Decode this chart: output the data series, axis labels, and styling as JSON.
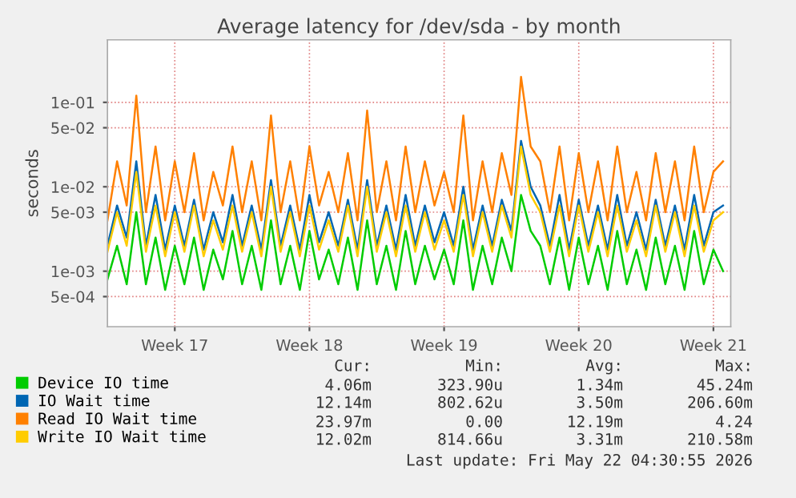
{
  "chart_data": {
    "type": "line",
    "title": "Average latency for /dev/sda - by month",
    "ylabel": "seconds",
    "log": "y",
    "grid": true,
    "legend": "bottom left",
    "marker": "none",
    "line_style": "solid",
    "categories": [
      null,
      null,
      null,
      null,
      null,
      null,
      null,
      "Week 17",
      null,
      null,
      null,
      null,
      null,
      null,
      null,
      null,
      null,
      null,
      null,
      null,
      null,
      "Week 18",
      null,
      null,
      null,
      null,
      null,
      null,
      null,
      null,
      null,
      null,
      null,
      null,
      null,
      "Week 19",
      null,
      null,
      null,
      null,
      null,
      null,
      null,
      null,
      null,
      null,
      null,
      null,
      null,
      "Week 20",
      null,
      null,
      null,
      null,
      null,
      null,
      null,
      null,
      null,
      null,
      null,
      null,
      null,
      "Week 21",
      null
    ],
    "ylim": [
      0.00022,
      0.55
    ],
    "yticks": [
      {
        "value": 0.0005,
        "label": "5e-04"
      },
      {
        "value": 0.001,
        "label": "1e-03"
      },
      {
        "value": 0.005,
        "label": "5e-03"
      },
      {
        "value": 0.01,
        "label": "1e-02"
      },
      {
        "value": 0.05,
        "label": "5e-02"
      },
      {
        "value": 0.1,
        "label": "1e-01"
      }
    ],
    "series": [
      {
        "name": "Device IO time",
        "color": "#00cc00",
        "values": [
          0.0008,
          0.002,
          0.0007,
          0.005,
          0.0007,
          0.0025,
          0.0006,
          0.002,
          0.0007,
          0.0025,
          0.0006,
          0.0018,
          0.0008,
          0.003,
          0.0007,
          0.002,
          0.0006,
          0.004,
          0.0007,
          0.002,
          0.0006,
          0.003,
          0.0008,
          0.0018,
          0.0007,
          0.0025,
          0.0006,
          0.004,
          0.0007,
          0.002,
          0.0006,
          0.003,
          0.0007,
          0.002,
          0.0008,
          0.0018,
          0.0007,
          0.004,
          0.0006,
          0.002,
          0.0007,
          0.0025,
          0.001,
          0.008,
          0.003,
          0.002,
          0.0007,
          0.0025,
          0.0006,
          0.0025,
          0.0007,
          0.002,
          0.0006,
          0.003,
          0.0007,
          0.0018,
          0.0006,
          0.0025,
          0.0007,
          0.002,
          0.0006,
          0.003,
          0.0007,
          0.0018,
          0.001
        ]
      },
      {
        "name": "IO Wait time",
        "color": "#0066b3",
        "values": [
          0.002,
          0.006,
          0.0025,
          0.02,
          0.002,
          0.008,
          0.0018,
          0.006,
          0.002,
          0.007,
          0.0018,
          0.005,
          0.0022,
          0.008,
          0.002,
          0.006,
          0.0018,
          0.012,
          0.002,
          0.006,
          0.0018,
          0.008,
          0.0022,
          0.005,
          0.002,
          0.007,
          0.0018,
          0.012,
          0.002,
          0.006,
          0.0018,
          0.008,
          0.002,
          0.006,
          0.0022,
          0.005,
          0.002,
          0.01,
          0.0018,
          0.006,
          0.002,
          0.007,
          0.003,
          0.035,
          0.01,
          0.006,
          0.002,
          0.008,
          0.0018,
          0.007,
          0.002,
          0.006,
          0.0018,
          0.008,
          0.002,
          0.005,
          0.0018,
          0.007,
          0.002,
          0.006,
          0.0018,
          0.008,
          0.002,
          0.005,
          0.006
        ]
      },
      {
        "name": "Read IO Wait time",
        "color": "#ff8000",
        "values": [
          0.004,
          0.02,
          0.006,
          0.12,
          0.005,
          0.03,
          0.004,
          0.02,
          0.005,
          0.025,
          0.004,
          0.015,
          0.006,
          0.03,
          0.005,
          0.02,
          0.004,
          0.07,
          0.005,
          0.02,
          0.004,
          0.03,
          0.006,
          0.015,
          0.005,
          0.025,
          0.004,
          0.08,
          0.005,
          0.02,
          0.004,
          0.03,
          0.005,
          0.02,
          0.006,
          0.015,
          0.005,
          0.07,
          0.004,
          0.02,
          0.005,
          0.025,
          0.008,
          0.2,
          0.03,
          0.02,
          0.005,
          0.03,
          0.004,
          0.025,
          0.005,
          0.02,
          0.004,
          0.03,
          0.005,
          0.015,
          0.004,
          0.025,
          0.005,
          0.02,
          0.004,
          0.03,
          0.005,
          0.015,
          0.02
        ]
      },
      {
        "name": "Write IO Wait time",
        "color": "#ffcc00",
        "values": [
          0.0017,
          0.005,
          0.002,
          0.015,
          0.0017,
          0.006,
          0.0015,
          0.005,
          0.0017,
          0.006,
          0.0015,
          0.004,
          0.0018,
          0.006,
          0.0017,
          0.005,
          0.0015,
          0.01,
          0.0017,
          0.005,
          0.0015,
          0.006,
          0.0018,
          0.004,
          0.0017,
          0.006,
          0.0015,
          0.01,
          0.0017,
          0.005,
          0.0015,
          0.006,
          0.0017,
          0.005,
          0.0018,
          0.004,
          0.0017,
          0.008,
          0.0015,
          0.005,
          0.0017,
          0.006,
          0.0025,
          0.03,
          0.008,
          0.005,
          0.0017,
          0.006,
          0.0015,
          0.006,
          0.0017,
          0.005,
          0.0015,
          0.006,
          0.0017,
          0.004,
          0.0015,
          0.006,
          0.0017,
          0.005,
          0.0015,
          0.006,
          0.0017,
          0.004,
          0.005
        ]
      }
    ],
    "annotations": [
      "Cur:",
      "Min:",
      "Avg:",
      "Max:",
      "4.06m",
      "323.90u",
      "1.34m",
      "45.24m",
      "12.14m",
      "802.62u",
      "3.50m",
      "206.60m",
      "23.97m",
      "0.00",
      "12.19m",
      "4.24",
      "12.02m",
      "814.66u",
      "3.31m",
      "210.58m",
      "Last update: Fri May 22 04:30:55 2026"
    ]
  }
}
